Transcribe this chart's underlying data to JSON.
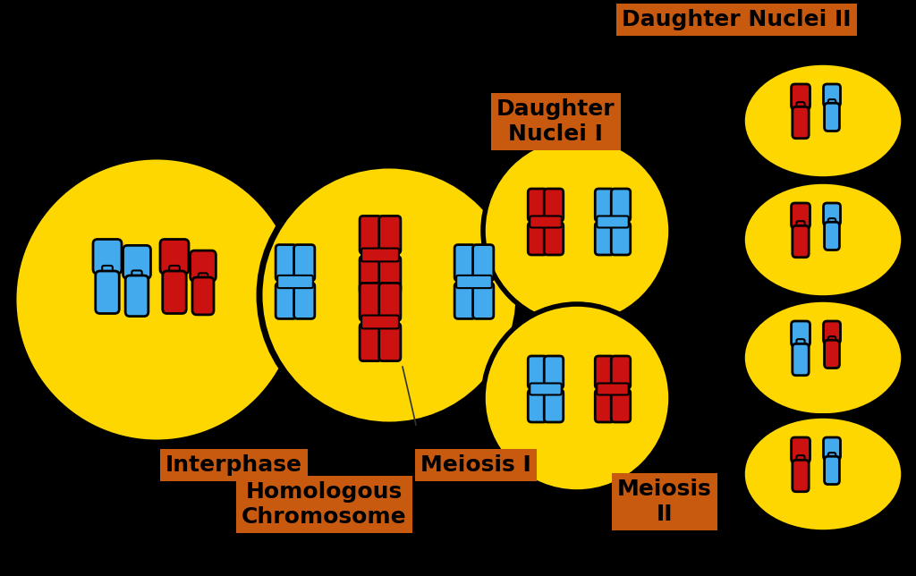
{
  "bg_color": "#000000",
  "yellow": "#FFD700",
  "red": "#CC1111",
  "blue": "#44AAEE",
  "orange_box": "#C85A10",
  "black": "#000000",
  "figsize": [
    10.24,
    6.44
  ],
  "dpi": 100,
  "labels": {
    "interphase": "Interphase",
    "homologous": "Homologous\nChromosome",
    "meiosis1": "Meiosis I",
    "daughter1": "Daughter\nNuclei I",
    "meiosis2": "Meiosis\nII",
    "daughter2": "Daughter Nuclei II"
  }
}
